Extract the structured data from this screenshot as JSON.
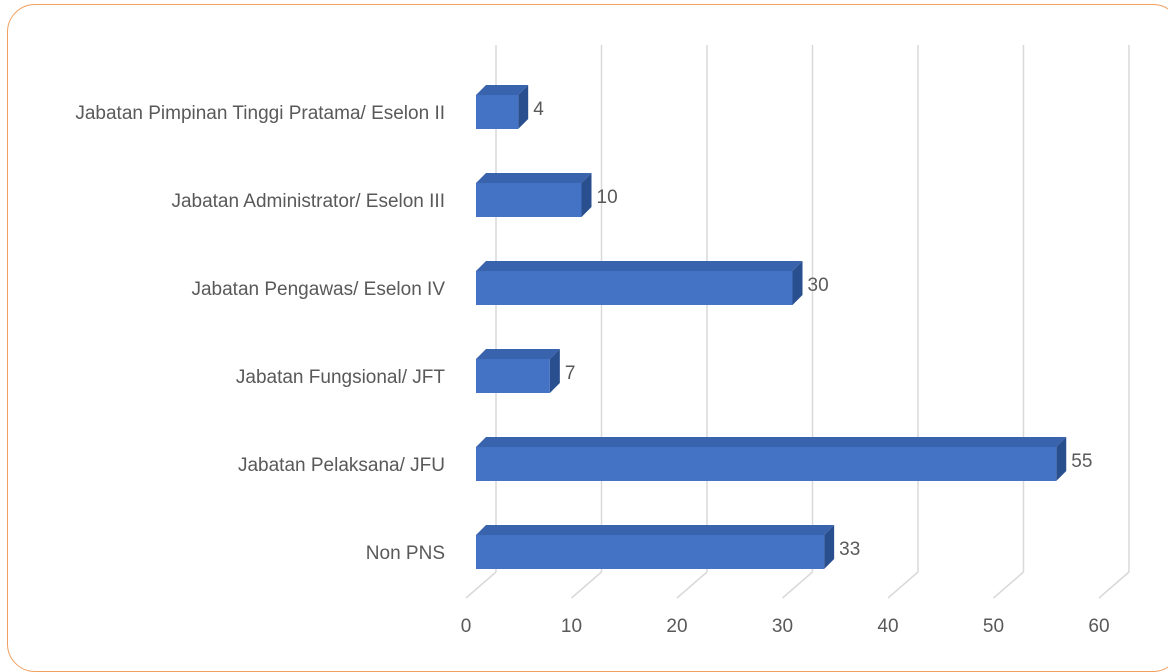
{
  "chart_data": {
    "type": "bar",
    "orientation": "horizontal",
    "style": "3d",
    "title": "",
    "xlabel": "",
    "ylabel": "",
    "categories": [
      "Jabatan Pimpinan Tinggi Pratama/ Eselon II",
      "Jabatan Administrator/ Eselon III",
      "Jabatan Pengawas/ Eselon IV",
      "Jabatan Fungsional/ JFT",
      "Jabatan Pelaksana/ JFU",
      "Non PNS"
    ],
    "values": [
      4,
      10,
      30,
      7,
      55,
      33
    ],
    "xlim": [
      0,
      60
    ],
    "ticks": [
      "0",
      "10",
      "20",
      "30",
      "40",
      "50",
      "60"
    ],
    "grid": true,
    "data_labels": true,
    "colors": {
      "bar_front": "#4472c4",
      "bar_top": "#3a63ad",
      "bar_side": "#2a4f8f",
      "grid": "#d9d9d9",
      "text": "#595959",
      "border": "#f0a060"
    }
  }
}
